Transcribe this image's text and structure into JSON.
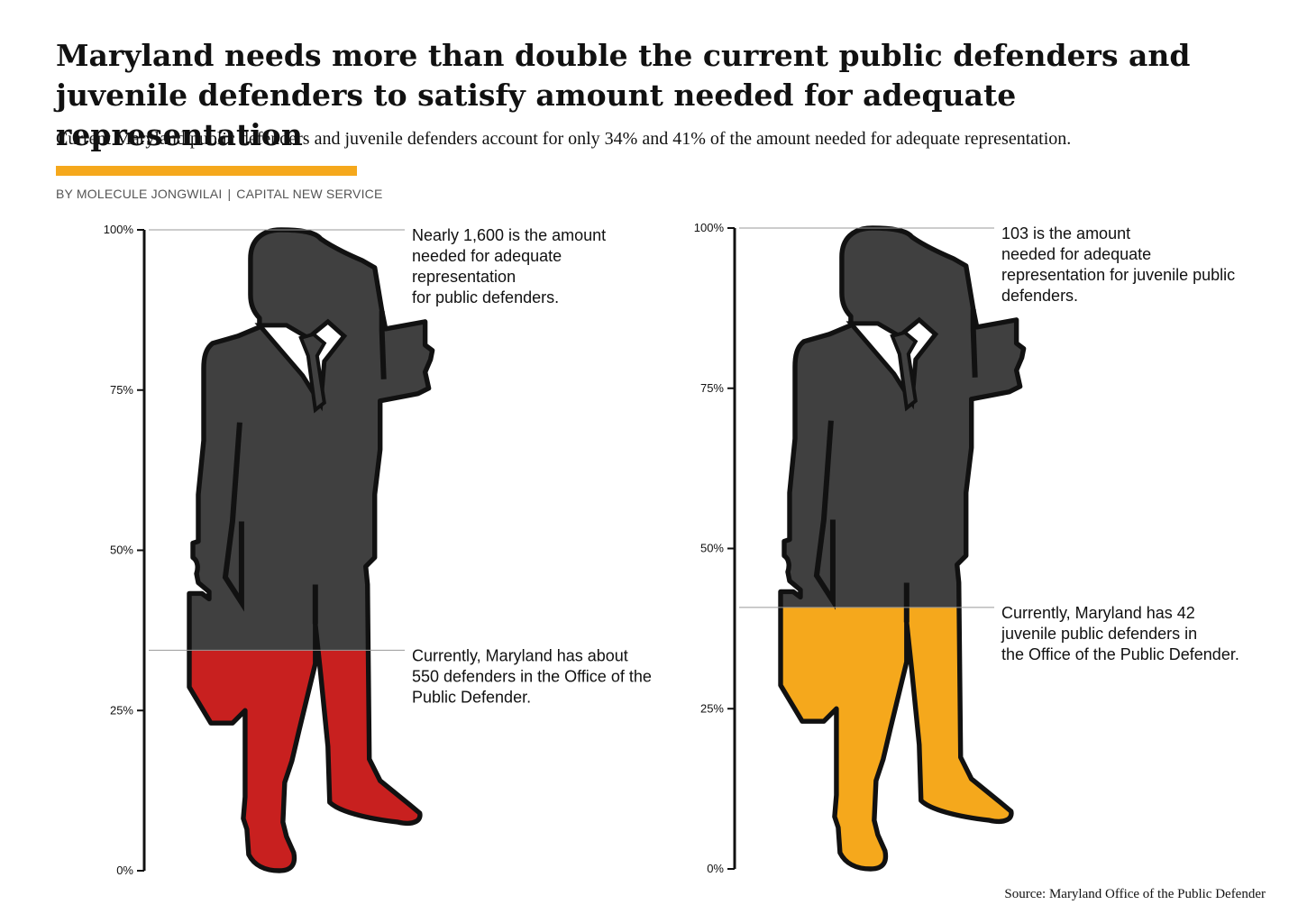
{
  "title": "Maryland needs more than double the current public defenders and juvenile defenders to satisfy amount needed for adequate representation",
  "subtitle": "Current Maryland public defenders and juvenile defenders account for only 34% and 41% of the amount needed for adequate representation.",
  "byline": {
    "author": "BY MOLECULE JONGWILAI",
    "separator": "|",
    "outlet": "CAPITAL NEW SERVICE"
  },
  "source": "Source: Maryland Office of the Public Defender",
  "colors": {
    "accent_bar": "#f5a81c",
    "silhouette": "#404040",
    "outline": "#111111",
    "public_fill": "#c8201f",
    "juvenile_fill": "#f5a81c",
    "reference_line": "#999999"
  },
  "chart_data": [
    {
      "type": "pictograph",
      "ylim": [
        0,
        100
      ],
      "ticks": [
        "0%",
        "25%",
        "50%",
        "75%",
        "100%"
      ],
      "tick_values": [
        0,
        25,
        50,
        75,
        100
      ],
      "icon": "businessman-silhouette-icon",
      "fill_color": "#c8201f",
      "value_percent": 34.4,
      "annotations": [
        {
          "value": 100,
          "lines": [
            "Nearly 1,600 is the amount",
            "needed for adequate",
            "representation",
            "for public defenders."
          ]
        },
        {
          "value": 34.4,
          "lines": [
            "Currently, Maryland has about",
            "550 defenders in the Office of the",
            "Public Defender."
          ]
        }
      ]
    },
    {
      "type": "pictograph",
      "ylim": [
        0,
        100
      ],
      "ticks": [
        "0%",
        "25%",
        "50%",
        "75%",
        "100%"
      ],
      "tick_values": [
        0,
        25,
        50,
        75,
        100
      ],
      "icon": "businessman-silhouette-icon",
      "fill_color": "#f5a81c",
      "value_percent": 40.8,
      "annotations": [
        {
          "value": 100,
          "lines": [
            "103 is the amount",
            "needed for adequate",
            "representation for juvenile public",
            "defenders."
          ]
        },
        {
          "value": 40.8,
          "lines": [
            "Currently, Maryland has 42",
            "juvenile public defenders in",
            "the Office of the Public Defender."
          ]
        }
      ]
    }
  ]
}
